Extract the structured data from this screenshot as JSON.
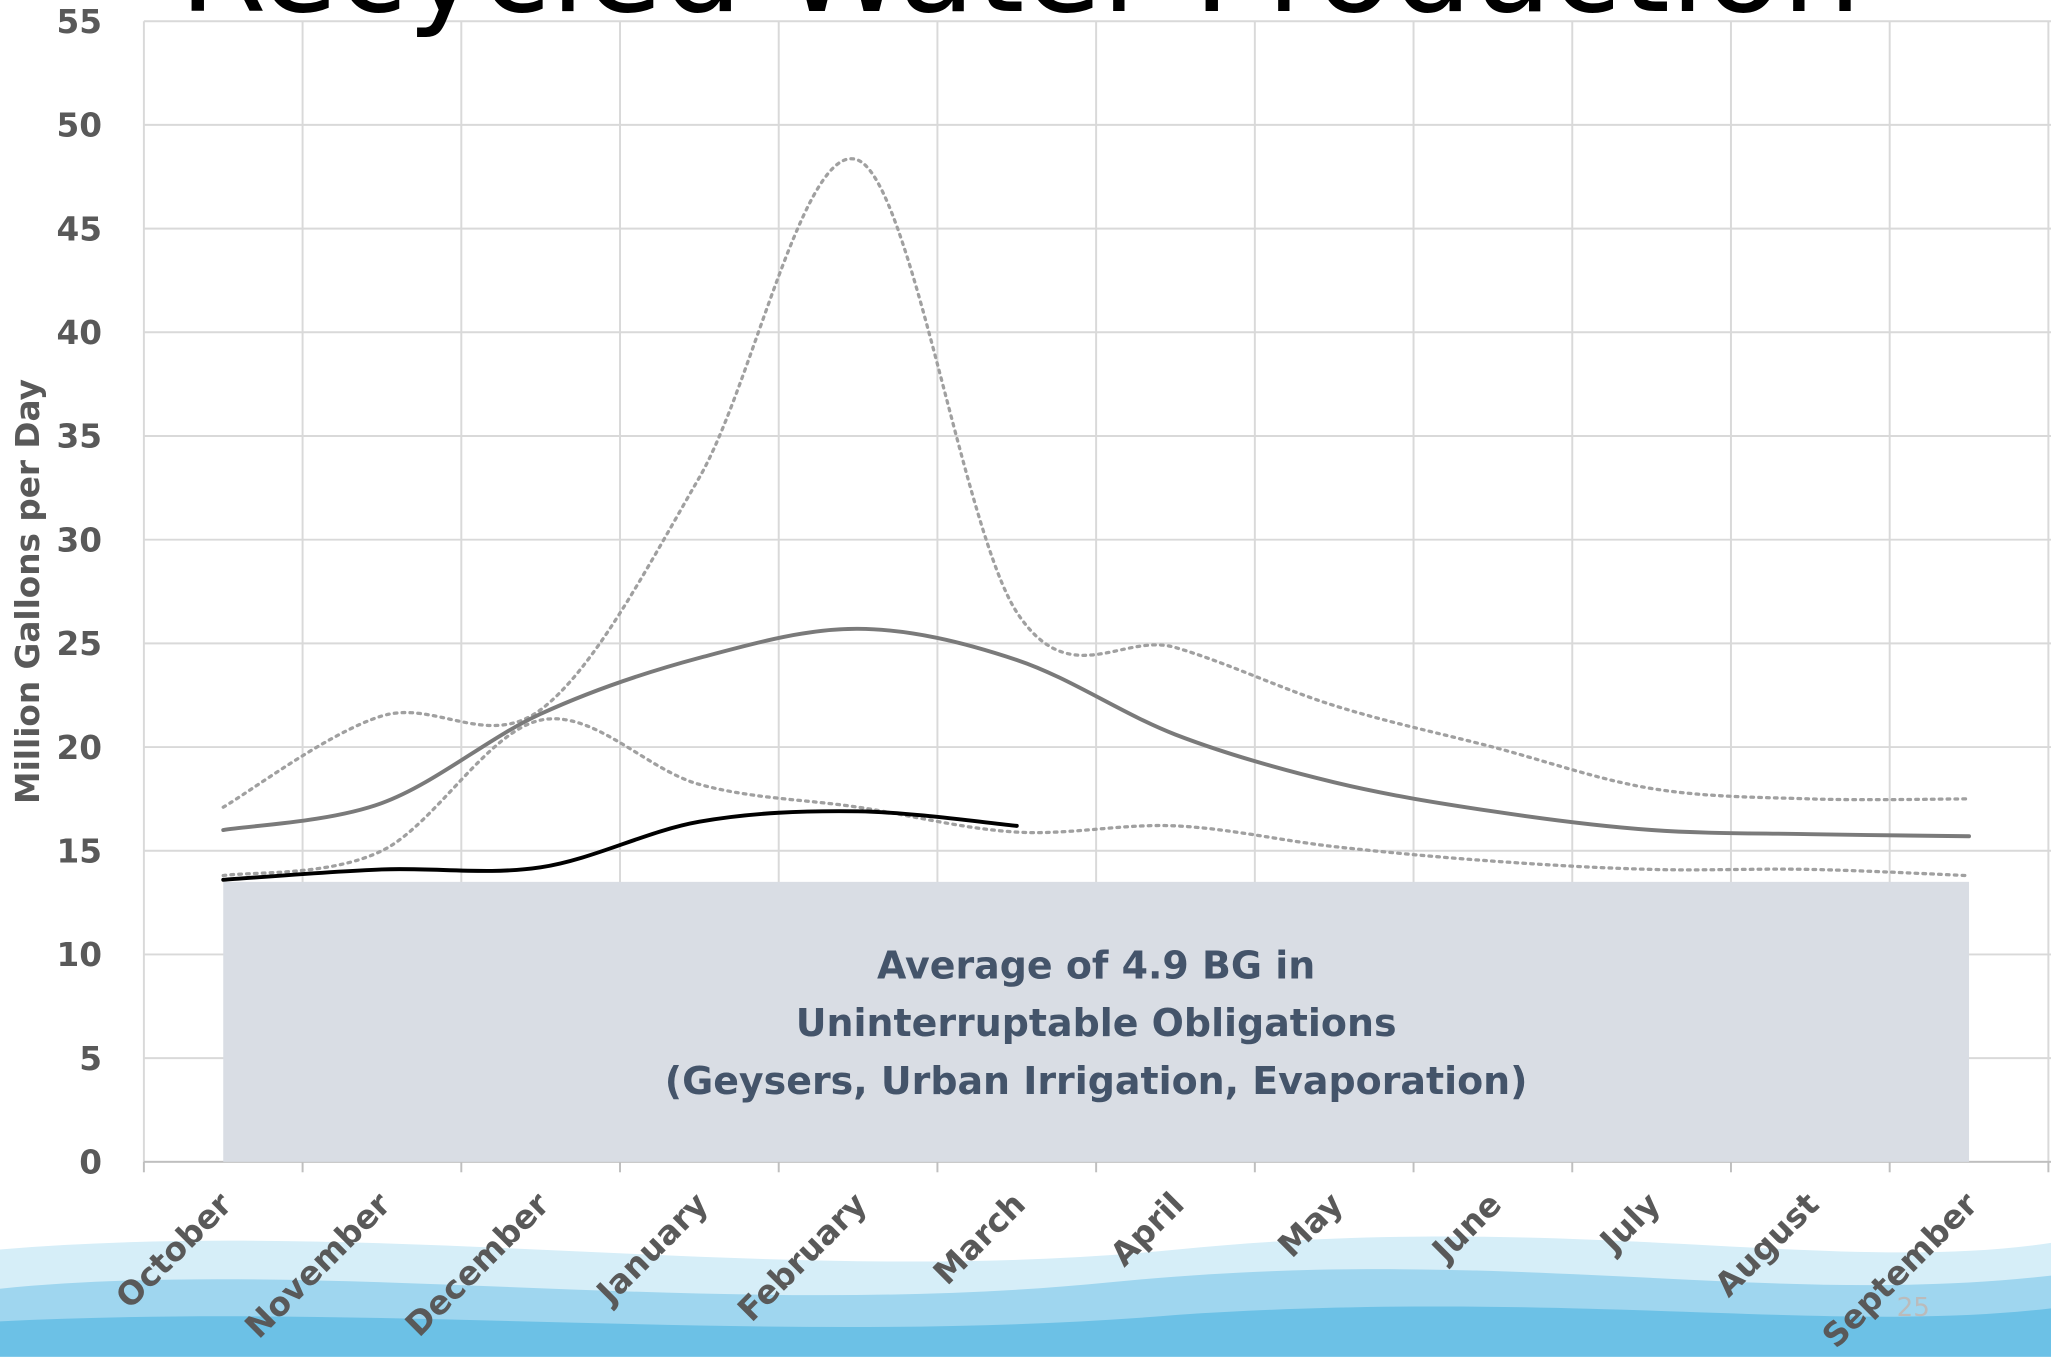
{
  "chart_data": {
    "type": "line",
    "title": "Recycled Water Production",
    "y_label": "Million Gallons per Day",
    "categories": [
      "October",
      "November",
      "December",
      "January",
      "February",
      "March",
      "April",
      "May",
      "June",
      "July",
      "August",
      "September"
    ],
    "series": [
      {
        "color": "#a0a0a0",
        "dash": "dotted",
        "values": [
          17.1,
          21.5,
          21.8,
          33,
          48.3,
          26.5,
          24.8,
          22,
          20,
          18,
          17.5,
          17.5
        ]
      },
      {
        "color": "#7a7a7a",
        "dash": "solid",
        "values": [
          16,
          17.3,
          21.6,
          24.3,
          25.7,
          24.2,
          20.6,
          18.3,
          16.9,
          16,
          15.8,
          15.7
        ]
      },
      {
        "color": "#a0a0a0",
        "dash": "dotted",
        "values": [
          13.8,
          15,
          21.3,
          18.2,
          17.1,
          15.9,
          16.2,
          15.2,
          14.5,
          14.1,
          14.1,
          13.8
        ]
      },
      {
        "color": "#000000",
        "dash": "solid",
        "values": [
          13.6,
          14.1,
          14.2,
          16.4,
          16.9,
          16.2,
          null,
          null,
          null,
          null,
          null,
          null
        ]
      }
    ],
    "band": {
      "value": 13.5,
      "color": "#d9dde4",
      "lines": [
        "Average of 4.9 BG in",
        "Uninterruptable Obligations",
        "(Geysers, Urban Irrigation, Evaporation)"
      ]
    },
    "ylim": [
      0,
      55
    ],
    "yticks": [
      0,
      5,
      10,
      15,
      20,
      25,
      30,
      35,
      40,
      45,
      50,
      55
    ],
    "grid": true,
    "page_number": "25"
  }
}
